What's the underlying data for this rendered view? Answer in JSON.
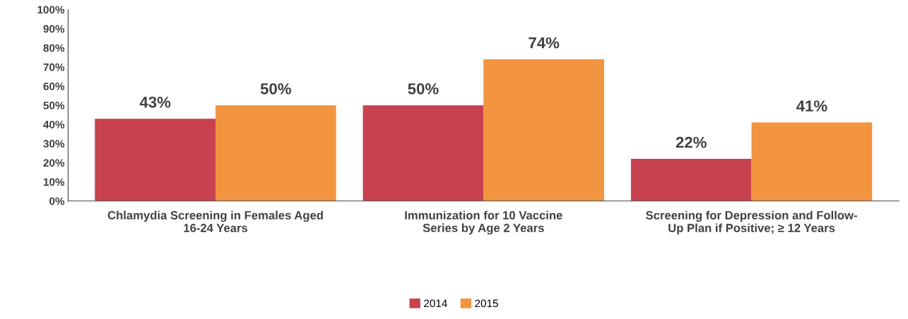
{
  "chart_data": {
    "type": "bar",
    "categories": [
      "Chlamydia Screening in Females Aged\n16-24 Years",
      "Immunization for 10 Vaccine\nSeries by Age 2 Years",
      "Screening for Depression and Follow-\nUp Plan if Positive; ≥ 12 Years"
    ],
    "series": [
      {
        "name": "2014",
        "color": "#c8414f",
        "values": [
          43,
          50,
          22
        ],
        "value_labels": [
          "43%",
          "50%",
          "22%"
        ]
      },
      {
        "name": "2015",
        "color": "#f39440",
        "values": [
          50,
          74,
          41
        ],
        "value_labels": [
          "50%",
          "74%",
          "41%"
        ]
      }
    ],
    "ylim": [
      0,
      100
    ],
    "yticks": [
      {
        "value": 0,
        "label": "0%"
      },
      {
        "value": 10,
        "label": "10%"
      },
      {
        "value": 20,
        "label": "20%"
      },
      {
        "value": 30,
        "label": "30%"
      },
      {
        "value": 40,
        "label": "40%"
      },
      {
        "value": 50,
        "label": "50%"
      },
      {
        "value": 60,
        "label": "60%"
      },
      {
        "value": 70,
        "label": "70%"
      },
      {
        "value": 80,
        "label": "80%"
      },
      {
        "value": 90,
        "label": "90%"
      },
      {
        "value": 100,
        "label": "100%"
      }
    ],
    "grid": false,
    "legend": "bottom"
  }
}
